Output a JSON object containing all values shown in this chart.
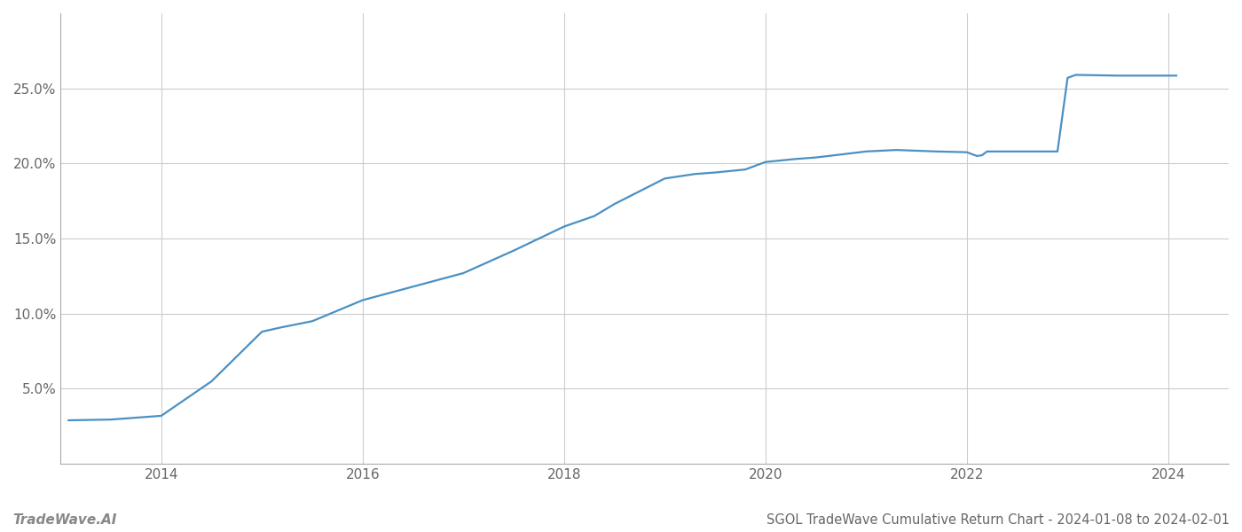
{
  "title": "SGOL TradeWave Cumulative Return Chart - 2024-01-08 to 2024-02-01",
  "watermark": "TradeWave.AI",
  "line_color": "#4a90c4",
  "background_color": "#ffffff",
  "grid_color": "#cccccc",
  "data_x": [
    2013.08,
    2013.5,
    2014.0,
    2014.5,
    2015.0,
    2015.2,
    2015.5,
    2016.0,
    2016.5,
    2017.0,
    2017.5,
    2018.0,
    2018.3,
    2018.5,
    2019.0,
    2019.3,
    2019.5,
    2019.8,
    2020.0,
    2020.3,
    2020.5,
    2021.0,
    2021.3,
    2021.7,
    2022.0,
    2022.1,
    2022.15,
    2022.2,
    2022.5,
    2022.7,
    2022.9,
    2023.0,
    2023.08,
    2023.5,
    2024.0,
    2024.08
  ],
  "data_y": [
    2.9,
    2.95,
    3.2,
    5.5,
    8.8,
    9.1,
    9.5,
    10.9,
    11.8,
    12.7,
    14.2,
    15.8,
    16.5,
    17.3,
    19.0,
    19.3,
    19.4,
    19.6,
    20.1,
    20.3,
    20.4,
    20.8,
    20.9,
    20.8,
    20.75,
    20.5,
    20.55,
    20.8,
    20.8,
    20.8,
    20.8,
    25.7,
    25.9,
    25.85,
    25.85,
    25.85
  ],
  "xlim": [
    2013.0,
    2024.6
  ],
  "ylim": [
    0,
    30
  ],
  "yticks": [
    5.0,
    10.0,
    15.0,
    20.0,
    25.0
  ],
  "ytick_labels": [
    "5.0%",
    "10.0%",
    "15.0%",
    "20.0%",
    "25.0%"
  ],
  "xticks": [
    2014,
    2016,
    2018,
    2020,
    2022,
    2024
  ],
  "title_fontsize": 10.5,
  "watermark_fontsize": 11,
  "tick_fontsize": 11,
  "line_width": 1.6
}
